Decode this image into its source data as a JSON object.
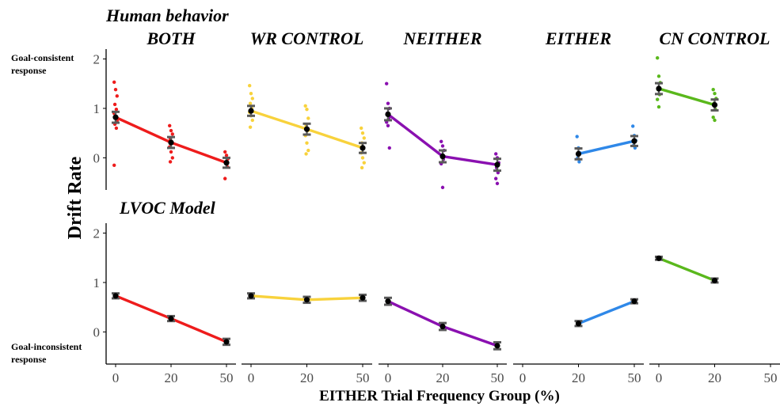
{
  "figure": {
    "ylabel": "Drift Rate",
    "xlabel": "EITHER Trial Frequency Group (%)",
    "row_titles": [
      "Human behavior",
      "LVOC Model"
    ],
    "goal_consistent": [
      "Goal-consistent",
      "response"
    ],
    "goal_inconsistent": [
      "Goal-inconsistent",
      "response"
    ]
  },
  "chart_data": {
    "type": "line",
    "x_categories": [
      "0",
      "20",
      "50"
    ],
    "y_ticks": [
      "0",
      "1",
      "2"
    ],
    "ylim": [
      -0.65,
      2.2
    ],
    "grid": false,
    "facets": [
      {
        "name": "BOTH",
        "color": "#ee1c1c"
      },
      {
        "name": "WR CONTROL",
        "color": "#f8d23c"
      },
      {
        "name": "NEITHER",
        "color": "#8a10b0"
      },
      {
        "name": "EITHER",
        "color": "#2f88e8"
      },
      {
        "name": "CN CONTROL",
        "color": "#5ab81c"
      }
    ],
    "rows": [
      {
        "title": "Human behavior",
        "panels": [
          {
            "facet": "BOTH",
            "points": [
              {
                "x": "0",
                "mean": 0.82,
                "se": 0.11,
                "individual": [
                  1.53,
                  1.38,
                  1.25,
                  1.08,
                  0.98,
                  0.9,
                  0.82,
                  0.75,
                  0.68,
                  0.6,
                  -0.15
                ]
              },
              {
                "x": "20",
                "mean": 0.31,
                "se": 0.11,
                "individual": [
                  0.65,
                  0.55,
                  0.48,
                  0.38,
                  0.3,
                  0.22,
                  0.12,
                  0.0,
                  -0.08
                ]
              },
              {
                "x": "50",
                "mean": -0.1,
                "se": 0.1,
                "individual": [
                  0.12,
                  0.05,
                  -0.02,
                  -0.1,
                  -0.18,
                  -0.42
                ]
              }
            ]
          },
          {
            "facet": "WR CONTROL",
            "points": [
              {
                "x": "0",
                "mean": 0.95,
                "se": 0.1,
                "individual": [
                  1.46,
                  1.3,
                  1.2,
                  1.1,
                  1.0,
                  0.92,
                  0.85,
                  0.76,
                  0.62
                ]
              },
              {
                "x": "20",
                "mean": 0.58,
                "se": 0.11,
                "individual": [
                  1.05,
                  0.98,
                  0.8,
                  0.65,
                  0.55,
                  0.45,
                  0.3,
                  0.15,
                  0.08
                ]
              },
              {
                "x": "50",
                "mean": 0.2,
                "se": 0.1,
                "individual": [
                  0.6,
                  0.5,
                  0.4,
                  0.3,
                  0.2,
                  0.1,
                  0.0,
                  -0.1,
                  -0.2
                ]
              }
            ]
          },
          {
            "facet": "NEITHER",
            "points": [
              {
                "x": "0",
                "mean": 0.88,
                "se": 0.12,
                "individual": [
                  1.5,
                  1.1,
                  1.0,
                  0.9,
                  0.8,
                  0.72,
                  0.65,
                  0.2
                ]
              },
              {
                "x": "20",
                "mean": 0.03,
                "se": 0.12,
                "individual": [
                  0.33,
                  0.24,
                  0.15,
                  0.05,
                  -0.03,
                  -0.12,
                  -0.6
                ]
              },
              {
                "x": "50",
                "mean": -0.14,
                "se": 0.12,
                "individual": [
                  0.08,
                  0.0,
                  -0.1,
                  -0.2,
                  -0.3,
                  -0.42,
                  -0.52
                ]
              }
            ]
          },
          {
            "facet": "EITHER",
            "points": [
              {
                "x": "20",
                "mean": 0.08,
                "se": 0.11,
                "individual": [
                  0.43,
                  0.2,
                  0.1,
                  0.0,
                  -0.08
                ]
              },
              {
                "x": "50",
                "mean": 0.34,
                "se": 0.1,
                "individual": [
                  0.64,
                  0.45,
                  0.35,
                  0.25,
                  0.2
                ]
              }
            ]
          },
          {
            "facet": "CN CONTROL",
            "points": [
              {
                "x": "0",
                "mean": 1.4,
                "se": 0.11,
                "individual": [
                  2.02,
                  1.65,
                  1.52,
                  1.38,
                  1.28,
                  1.18,
                  1.03
                ]
              },
              {
                "x": "20",
                "mean": 1.07,
                "se": 0.11,
                "individual": [
                  1.38,
                  1.3,
                  1.2,
                  1.1,
                  0.98,
                  0.82,
                  0.76
                ]
              }
            ]
          }
        ]
      },
      {
        "title": "LVOC Model",
        "panels": [
          {
            "facet": "BOTH",
            "points": [
              {
                "x": "0",
                "mean": 0.73,
                "se": 0.05
              },
              {
                "x": "20",
                "mean": 0.27,
                "se": 0.05
              },
              {
                "x": "50",
                "mean": -0.2,
                "se": 0.06
              }
            ]
          },
          {
            "facet": "WR CONTROL",
            "points": [
              {
                "x": "0",
                "mean": 0.73,
                "se": 0.05
              },
              {
                "x": "20",
                "mean": 0.65,
                "se": 0.06
              },
              {
                "x": "50",
                "mean": 0.69,
                "se": 0.06
              }
            ]
          },
          {
            "facet": "NEITHER",
            "points": [
              {
                "x": "0",
                "mean": 0.62,
                "se": 0.07
              },
              {
                "x": "20",
                "mean": 0.11,
                "se": 0.07
              },
              {
                "x": "50",
                "mean": -0.28,
                "se": 0.07
              }
            ]
          },
          {
            "facet": "EITHER",
            "points": [
              {
                "x": "20",
                "mean": 0.17,
                "se": 0.05
              },
              {
                "x": "50",
                "mean": 0.62,
                "se": 0.04
              }
            ]
          },
          {
            "facet": "CN CONTROL",
            "points": [
              {
                "x": "0",
                "mean": 1.49,
                "se": 0.03
              },
              {
                "x": "20",
                "mean": 1.04,
                "se": 0.04
              }
            ]
          }
        ]
      }
    ]
  }
}
